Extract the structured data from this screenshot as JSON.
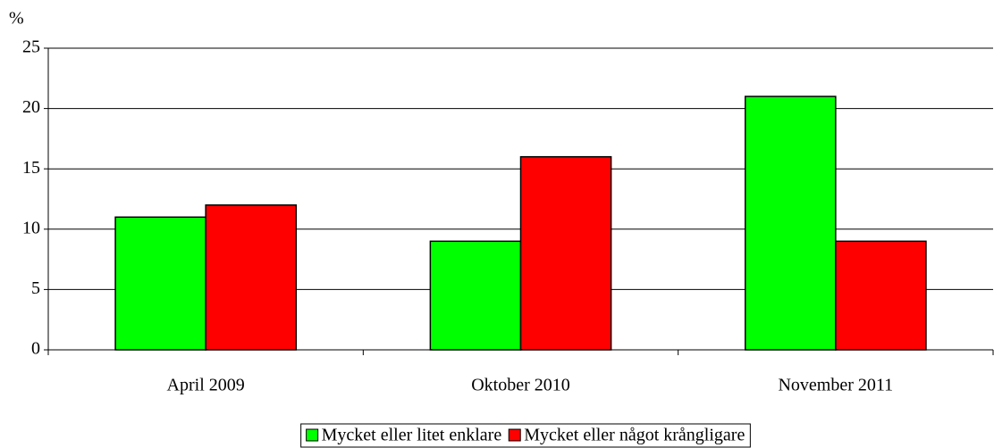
{
  "chart_data": {
    "type": "bar",
    "y_label": "%",
    "categories": [
      "April 2009",
      "Oktober 2010",
      "November 2011"
    ],
    "series": [
      {
        "name": "Mycket eller litet enklare",
        "color": "#00ff00",
        "values": [
          11,
          9,
          21
        ]
      },
      {
        "name": "Mycket eller något krångligare",
        "color": "#ff0000",
        "values": [
          12,
          16,
          9
        ]
      }
    ],
    "ylim": [
      0,
      25
    ],
    "yticks": [
      0,
      5,
      10,
      15,
      20,
      25
    ],
    "grid": true,
    "legend": "bottom"
  }
}
